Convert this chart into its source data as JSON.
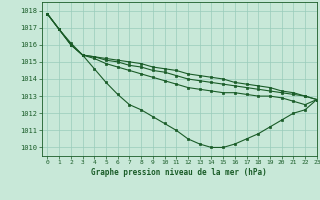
{
  "title": "Graphe pression niveau de la mer (hPa)",
  "bg_color": "#c8e8d8",
  "grid_color": "#99ccbb",
  "line_color": "#1a5c28",
  "xlim": [
    -0.5,
    23
  ],
  "ylim": [
    1009.5,
    1018.5
  ],
  "yticks": [
    1010,
    1011,
    1012,
    1013,
    1014,
    1015,
    1016,
    1017,
    1018
  ],
  "xticks": [
    0,
    1,
    2,
    3,
    4,
    5,
    6,
    7,
    8,
    9,
    10,
    11,
    12,
    13,
    14,
    15,
    16,
    17,
    18,
    19,
    20,
    21,
    22,
    23
  ],
  "series": [
    [
      1017.8,
      1016.9,
      1016.1,
      1015.4,
      1014.6,
      1013.8,
      1013.1,
      1012.5,
      1012.2,
      1011.8,
      1011.4,
      1011.0,
      1010.5,
      1010.2,
      1010.0,
      1010.0,
      1010.2,
      1010.5,
      1010.8,
      1011.2,
      1011.6,
      1012.0,
      1012.2,
      1012.8
    ],
    [
      1017.8,
      1016.9,
      1016.0,
      1015.4,
      1015.2,
      1014.9,
      1014.7,
      1014.5,
      1014.3,
      1014.1,
      1013.9,
      1013.7,
      1013.5,
      1013.4,
      1013.3,
      1013.2,
      1013.2,
      1013.1,
      1013.0,
      1013.0,
      1012.9,
      1012.7,
      1012.5,
      1012.8
    ],
    [
      1017.8,
      1016.9,
      1016.0,
      1015.4,
      1015.3,
      1015.1,
      1015.0,
      1014.8,
      1014.7,
      1014.5,
      1014.4,
      1014.2,
      1014.0,
      1013.9,
      1013.8,
      1013.7,
      1013.6,
      1013.5,
      1013.4,
      1013.3,
      1013.2,
      1013.1,
      1013.0,
      1012.8
    ],
    [
      1017.8,
      1016.9,
      1016.0,
      1015.4,
      1015.3,
      1015.2,
      1015.1,
      1015.0,
      1014.9,
      1014.7,
      1014.6,
      1014.5,
      1014.3,
      1014.2,
      1014.1,
      1014.0,
      1013.8,
      1013.7,
      1013.6,
      1013.5,
      1013.3,
      1013.2,
      1013.0,
      1012.8
    ]
  ]
}
